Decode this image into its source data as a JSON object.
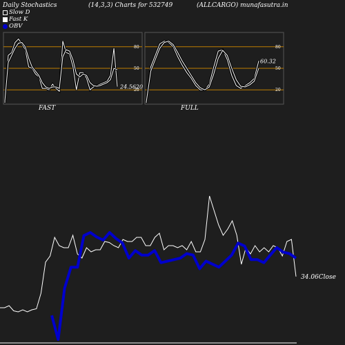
{
  "header": {
    "left": "Daily Stochastics",
    "params": "(14,3,3) Charts for 532749",
    "right": "(ALLCARGO) munafasutra.in"
  },
  "legend": [
    {
      "label": "Slow  D",
      "swatch": "outline"
    },
    {
      "label": "Fast K",
      "swatch": "fill"
    },
    {
      "label": "OBV",
      "swatch": "blue"
    }
  ],
  "colors": {
    "background": "#1e1e1e",
    "panel_border": "#555555",
    "level_line": "#c07f00",
    "price_line": "#ffffff",
    "obv_line": "#0000cc"
  },
  "chart_data": [
    {
      "type": "line",
      "name": "FAST",
      "label": "FAST",
      "ylim": [
        0,
        100
      ],
      "levels": [
        20,
        50,
        80
      ],
      "last_value_label": "24.5620",
      "series": [
        {
          "name": "Fast K",
          "values": [
            2,
            68,
            72,
            86,
            91,
            84,
            76,
            52,
            50,
            42,
            38,
            22,
            22,
            20,
            28,
            22,
            18,
            88,
            72,
            70,
            52,
            20,
            44,
            44,
            36,
            20,
            24,
            26,
            28,
            30,
            32,
            40,
            78,
            24.56
          ]
        },
        {
          "name": "Slow  D",
          "values": [
            4,
            58,
            68,
            78,
            85,
            86,
            80,
            64,
            52,
            46,
            40,
            30,
            24,
            22,
            24,
            24,
            22,
            66,
            76,
            74,
            62,
            42,
            38,
            42,
            40,
            30,
            26,
            25,
            26,
            28,
            30,
            34,
            50,
            48
          ]
        }
      ]
    },
    {
      "type": "line",
      "name": "FULL",
      "label": "FULL",
      "ylim": [
        0,
        100
      ],
      "levels": [
        20,
        50,
        80
      ],
      "last_value_label": "60.32",
      "series": [
        {
          "name": "Fast K",
          "values": [
            2,
            52,
            68,
            84,
            88,
            86,
            80,
            66,
            54,
            44,
            36,
            26,
            20,
            20,
            28,
            52,
            74,
            76,
            62,
            40,
            26,
            22,
            26,
            30,
            36,
            60.32
          ]
        },
        {
          "name": "Slow  D",
          "values": [
            3,
            46,
            62,
            78,
            86,
            88,
            83,
            72,
            60,
            50,
            40,
            30,
            23,
            20,
            24,
            42,
            64,
            75,
            68,
            50,
            34,
            25,
            24,
            27,
            32,
            50
          ]
        }
      ]
    },
    {
      "type": "line",
      "name": "Price and OBV",
      "last_value_label": "34.06",
      "last_value_suffix": "Close",
      "series": [
        {
          "name": "Close",
          "values": [
            19,
            19,
            20,
            17.5,
            17,
            18,
            17,
            18,
            18.5,
            26,
            41,
            44,
            53,
            49,
            48,
            48,
            54,
            45,
            43,
            48,
            46,
            47,
            47,
            51,
            50.5,
            49,
            48,
            52,
            51,
            51,
            53,
            53,
            49,
            49,
            53,
            55,
            47,
            49,
            49,
            48,
            49,
            47,
            51,
            46,
            46,
            52,
            73,
            66,
            59,
            54,
            57,
            61,
            54,
            40,
            48,
            45,
            49,
            46,
            48,
            46,
            49,
            48,
            44,
            51,
            52,
            34.06
          ]
        },
        {
          "name": "OBV",
          "values": [
            -20,
            -36,
            -2,
            12,
            12,
            33,
            35,
            32,
            30,
            35,
            31,
            28,
            18,
            23,
            20,
            20,
            23,
            15,
            16,
            17,
            18,
            21,
            20,
            11,
            16,
            14,
            12,
            16,
            20,
            28,
            26,
            17,
            17,
            15,
            20,
            25,
            22,
            21,
            18
          ]
        }
      ]
    }
  ]
}
